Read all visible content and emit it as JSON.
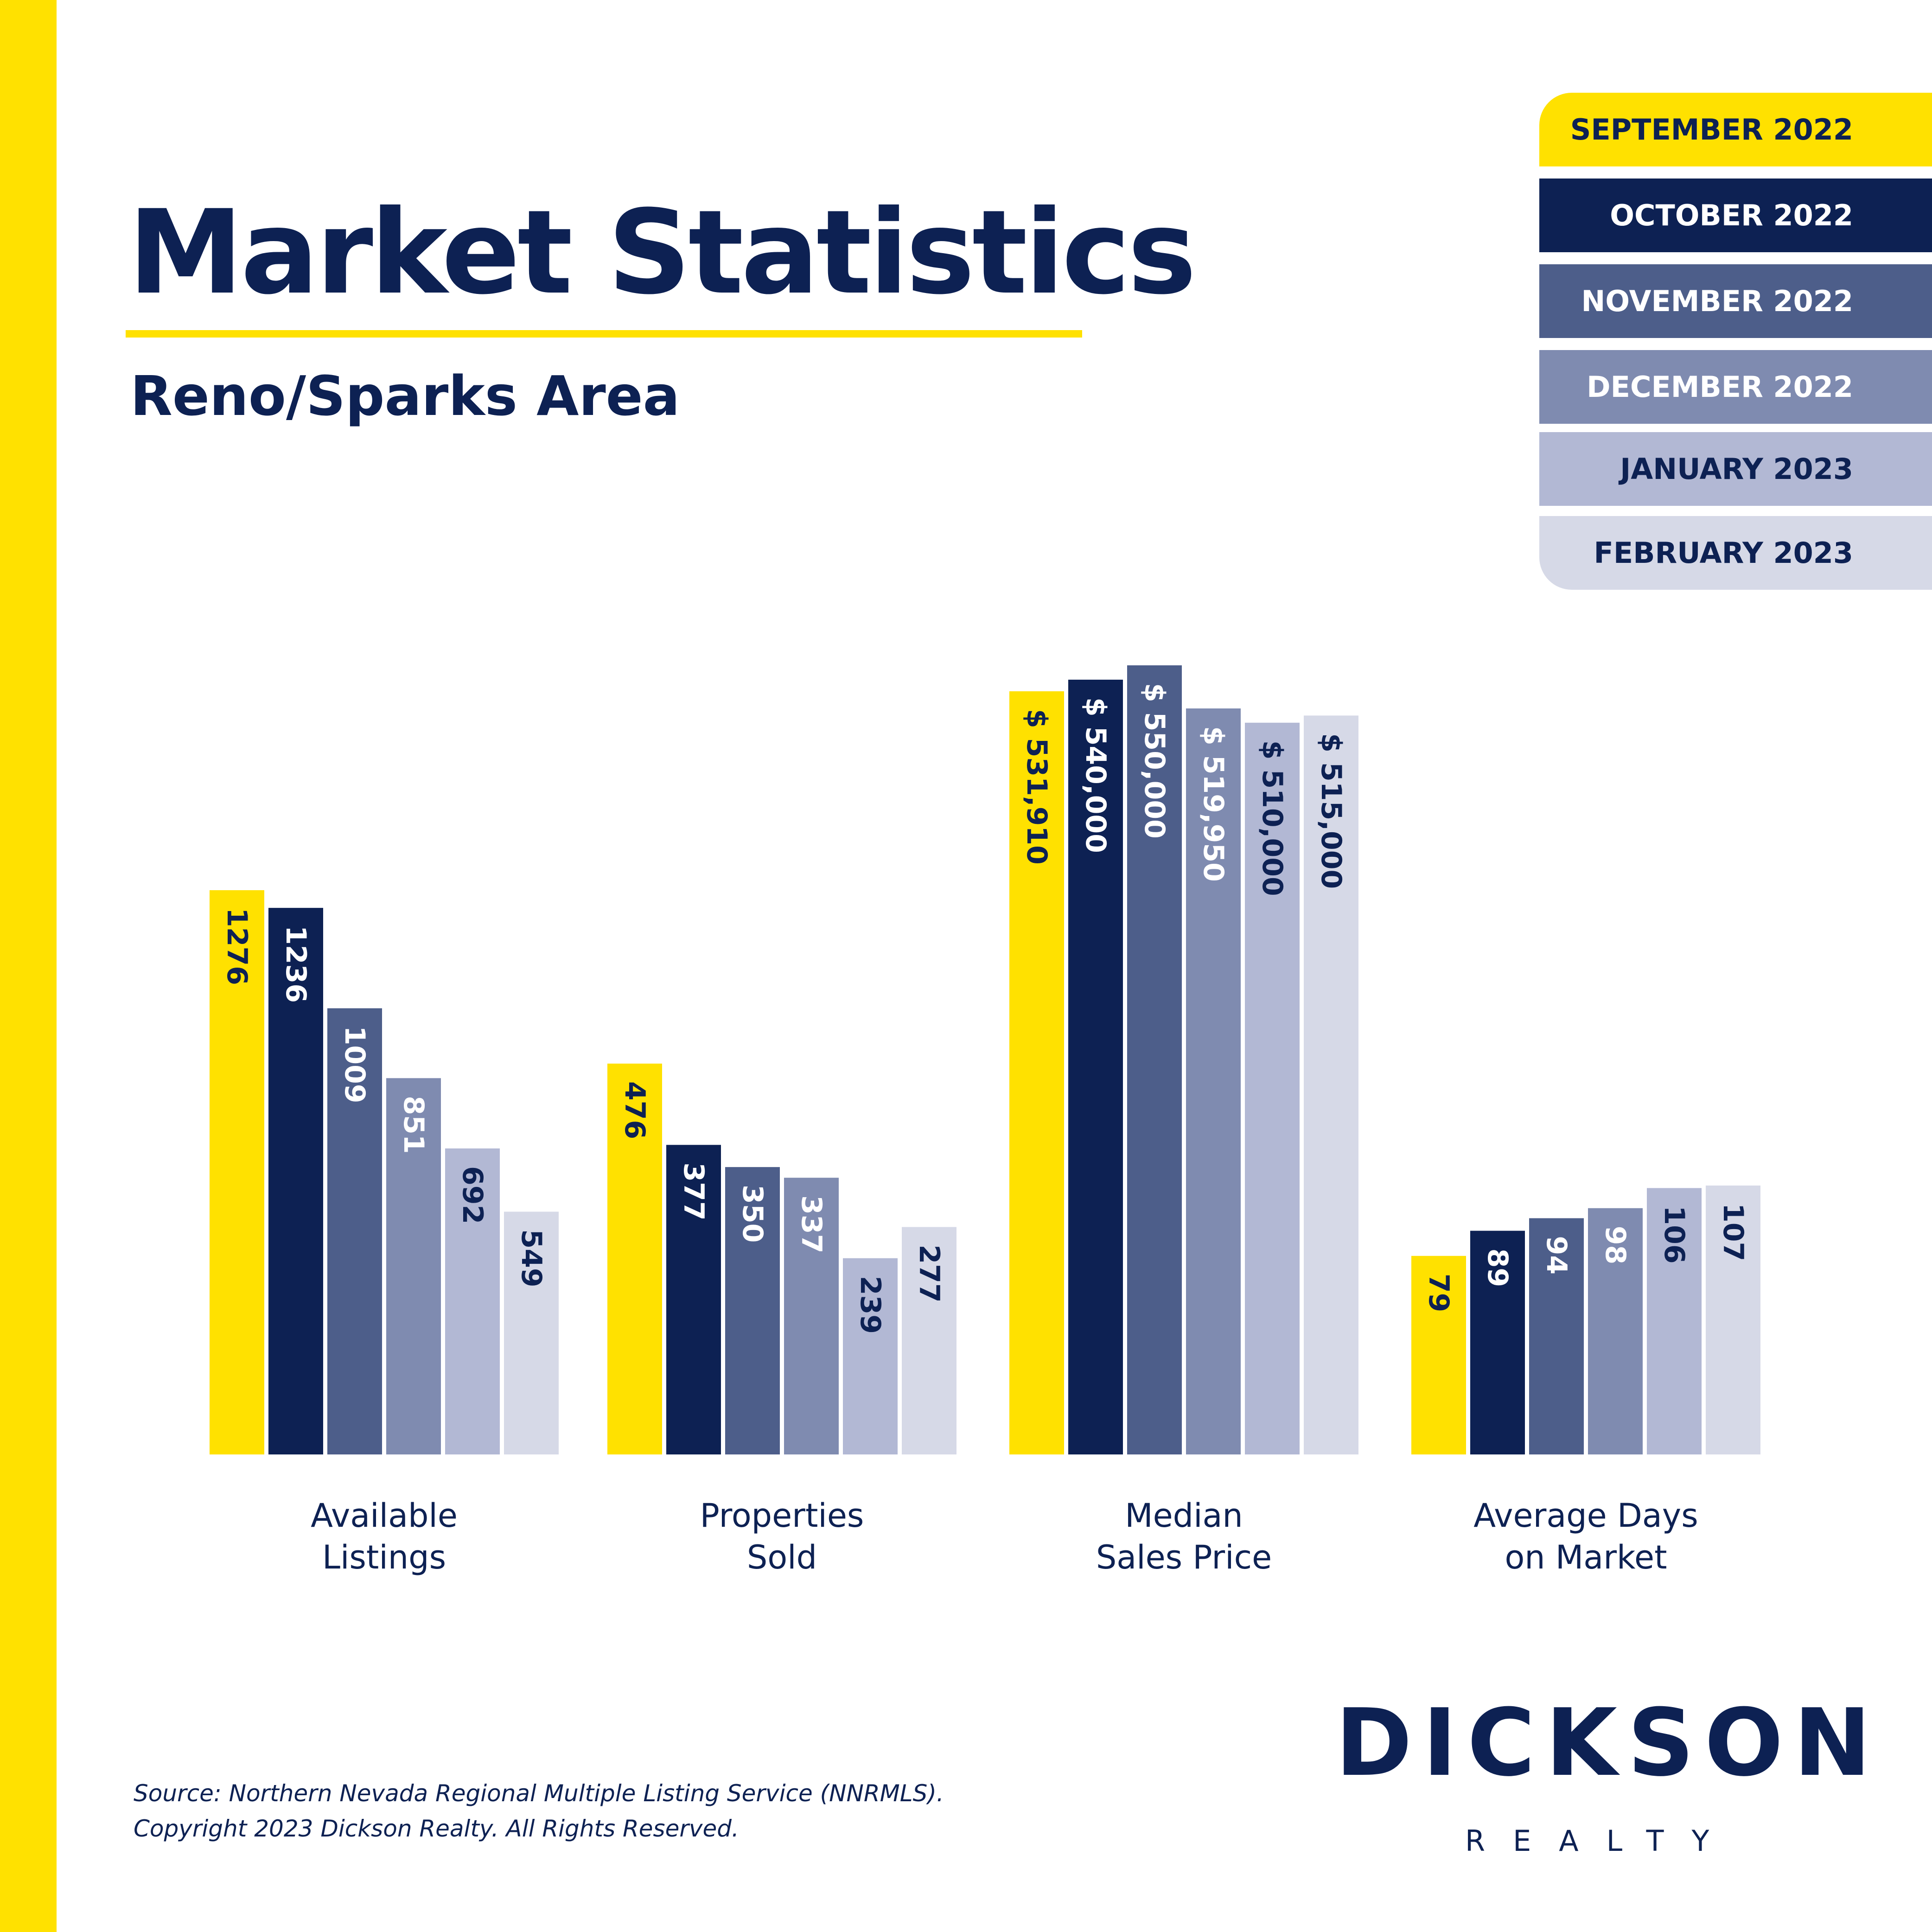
{
  "header": {
    "title": "Market Statistics",
    "subtitle": "Reno/Sparks Area"
  },
  "legend": [
    {
      "label": "SEPTEMBER 2022",
      "color": "#ffe100",
      "text_color": "#0d2153"
    },
    {
      "label": "OCTOBER 2022",
      "color": "#0d2153",
      "text_color": "#ffffff"
    },
    {
      "label": "NOVEMBER 2022",
      "color": "#4d5e8a",
      "text_color": "#ffffff"
    },
    {
      "label": "DECEMBER 2022",
      "color": "#7f8bb0",
      "text_color": "#ffffff"
    },
    {
      "label": "JANUARY 2023",
      "color": "#b2b8d4",
      "text_color": "#0d2153"
    },
    {
      "label": "FEBRUARY 2023",
      "color": "#d6d9e7",
      "text_color": "#0d2153"
    }
  ],
  "chart_data": [
    {
      "type": "bar",
      "title": "Available Listings",
      "title_lines": [
        "Available",
        "Listings"
      ],
      "series": [
        {
          "name": "SEPTEMBER 2022",
          "value": 1276,
          "label": "1276"
        },
        {
          "name": "OCTOBER 2022",
          "value": 1236,
          "label": "1236"
        },
        {
          "name": "NOVEMBER 2022",
          "value": 1009,
          "label": "1009"
        },
        {
          "name": "DECEMBER 2022",
          "value": 851,
          "label": "851"
        },
        {
          "name": "JANUARY 2023",
          "value": 692,
          "label": "692"
        },
        {
          "name": "FEBRUARY 2023",
          "value": 549,
          "label": "549"
        }
      ]
    },
    {
      "type": "bar",
      "title": "Properties Sold",
      "title_lines": [
        "Properties",
        "Sold"
      ],
      "series": [
        {
          "name": "SEPTEMBER 2022",
          "value": 476,
          "label": "476"
        },
        {
          "name": "OCTOBER 2022",
          "value": 377,
          "label": "377"
        },
        {
          "name": "NOVEMBER 2022",
          "value": 350,
          "label": "350"
        },
        {
          "name": "DECEMBER 2022",
          "value": 337,
          "label": "337"
        },
        {
          "name": "JANUARY 2023",
          "value": 239,
          "label": "239"
        },
        {
          "name": "FEBRUARY 2023",
          "value": 277,
          "label": "277"
        }
      ]
    },
    {
      "type": "bar",
      "title": "Median Sales Price",
      "title_lines": [
        "Median",
        "Sales Price"
      ],
      "series": [
        {
          "name": "SEPTEMBER 2022",
          "value": 531910,
          "label": "$ 531,910"
        },
        {
          "name": "OCTOBER 2022",
          "value": 540000,
          "label": "$ 540,000"
        },
        {
          "name": "NOVEMBER 2022",
          "value": 550000,
          "label": "$ 550,000"
        },
        {
          "name": "DECEMBER 2022",
          "value": 519950,
          "label": "$ 519,950"
        },
        {
          "name": "JANUARY 2023",
          "value": 510000,
          "label": "$ 510,000"
        },
        {
          "name": "FEBRUARY 2023",
          "value": 515000,
          "label": "$ 515,000"
        }
      ]
    },
    {
      "type": "bar",
      "title": "Average Days on Market",
      "title_lines": [
        "Average Days",
        "on Market"
      ],
      "series": [
        {
          "name": "SEPTEMBER 2022",
          "value": 79,
          "label": "79"
        },
        {
          "name": "OCTOBER 2022",
          "value": 89,
          "label": "89"
        },
        {
          "name": "NOVEMBER 2022",
          "value": 94,
          "label": "94"
        },
        {
          "name": "DECEMBER 2022",
          "value": 98,
          "label": "98"
        },
        {
          "name": "JANUARY 2023",
          "value": 106,
          "label": "106"
        },
        {
          "name": "FEBRUARY 2023",
          "value": 107,
          "label": "107"
        }
      ]
    }
  ],
  "footer": {
    "source_line1": "Source: Northern Nevada Regional Multiple Listing Service (NNRMLS).",
    "source_line2": "Copyright 2023 Dickson Realty. All Rights Reserved."
  },
  "logo": {
    "name": "DICKSON",
    "sub": "REALTY"
  }
}
